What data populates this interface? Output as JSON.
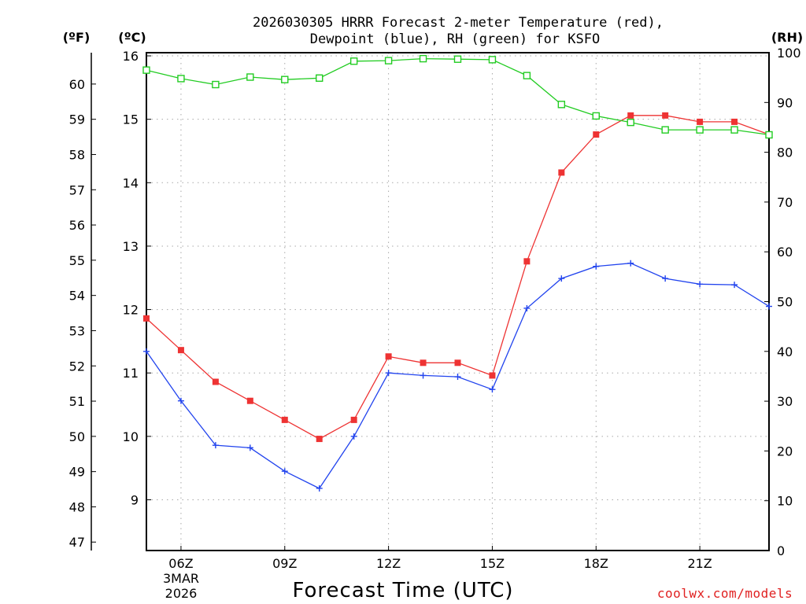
{
  "chart_data": {
    "type": "line",
    "title_lines": [
      "2026030305 HRRR Forecast 2-meter Temperature (red),",
      "Dewpoint (blue), RH (green) for KSFO"
    ],
    "xlabel": "Forecast Time (UTC)",
    "date_lines": [
      "3MAR",
      "2026"
    ],
    "credit": "coolwx.com/models",
    "units": {
      "f": "(ºF)",
      "c": "(ºC)",
      "rh": "(RH)"
    },
    "x_ticks": [
      {
        "hour": 6,
        "label": "06Z"
      },
      {
        "hour": 9,
        "label": "09Z"
      },
      {
        "hour": 12,
        "label": "12Z"
      },
      {
        "hour": 15,
        "label": "15Z"
      },
      {
        "hour": 18,
        "label": "18Z"
      },
      {
        "hour": 21,
        "label": "21Z"
      }
    ],
    "x_range": [
      5,
      23
    ],
    "c_range": [
      8.2,
      16.05
    ],
    "rh_range": [
      0,
      100
    ],
    "c_ticks": [
      9,
      10,
      11,
      12,
      13,
      14,
      15,
      16
    ],
    "f_ticks": [
      47,
      48,
      49,
      50,
      51,
      52,
      53,
      54,
      55,
      56,
      57,
      58,
      59,
      60
    ],
    "rh_ticks": [
      0,
      10,
      20,
      30,
      40,
      50,
      60,
      70,
      80,
      90,
      100
    ],
    "grid": true,
    "x": [
      5,
      6,
      7,
      8,
      9,
      10,
      11,
      12,
      13,
      14,
      15,
      16,
      17,
      18,
      19,
      20,
      21,
      22,
      23
    ],
    "series": [
      {
        "name": "Temperature",
        "axis": "c",
        "color": "#ee3333",
        "marker": "filled-square",
        "values": [
          11.86,
          11.36,
          10.86,
          10.56,
          10.26,
          9.96,
          10.26,
          11.26,
          11.16,
          11.16,
          10.96,
          12.76,
          14.16,
          14.76,
          15.06,
          15.06,
          14.96,
          14.96,
          14.76
        ]
      },
      {
        "name": "Dewpoint",
        "axis": "c",
        "color": "#2244ee",
        "marker": "plus",
        "values": [
          11.34,
          10.56,
          9.86,
          9.82,
          9.45,
          9.18,
          10.0,
          11.0,
          10.96,
          10.94,
          10.74,
          12.02,
          12.49,
          12.68,
          12.73,
          12.49,
          12.4,
          12.39,
          12.05
        ]
      },
      {
        "name": "RH",
        "axis": "rh",
        "color": "#22cc22",
        "marker": "open-square",
        "values": [
          96.5,
          94.8,
          93.6,
          95.1,
          94.6,
          94.9,
          98.3,
          98.4,
          98.8,
          98.7,
          98.6,
          95.4,
          89.6,
          87.3,
          86.0,
          84.5,
          84.5,
          84.5,
          83.5
        ]
      }
    ]
  }
}
